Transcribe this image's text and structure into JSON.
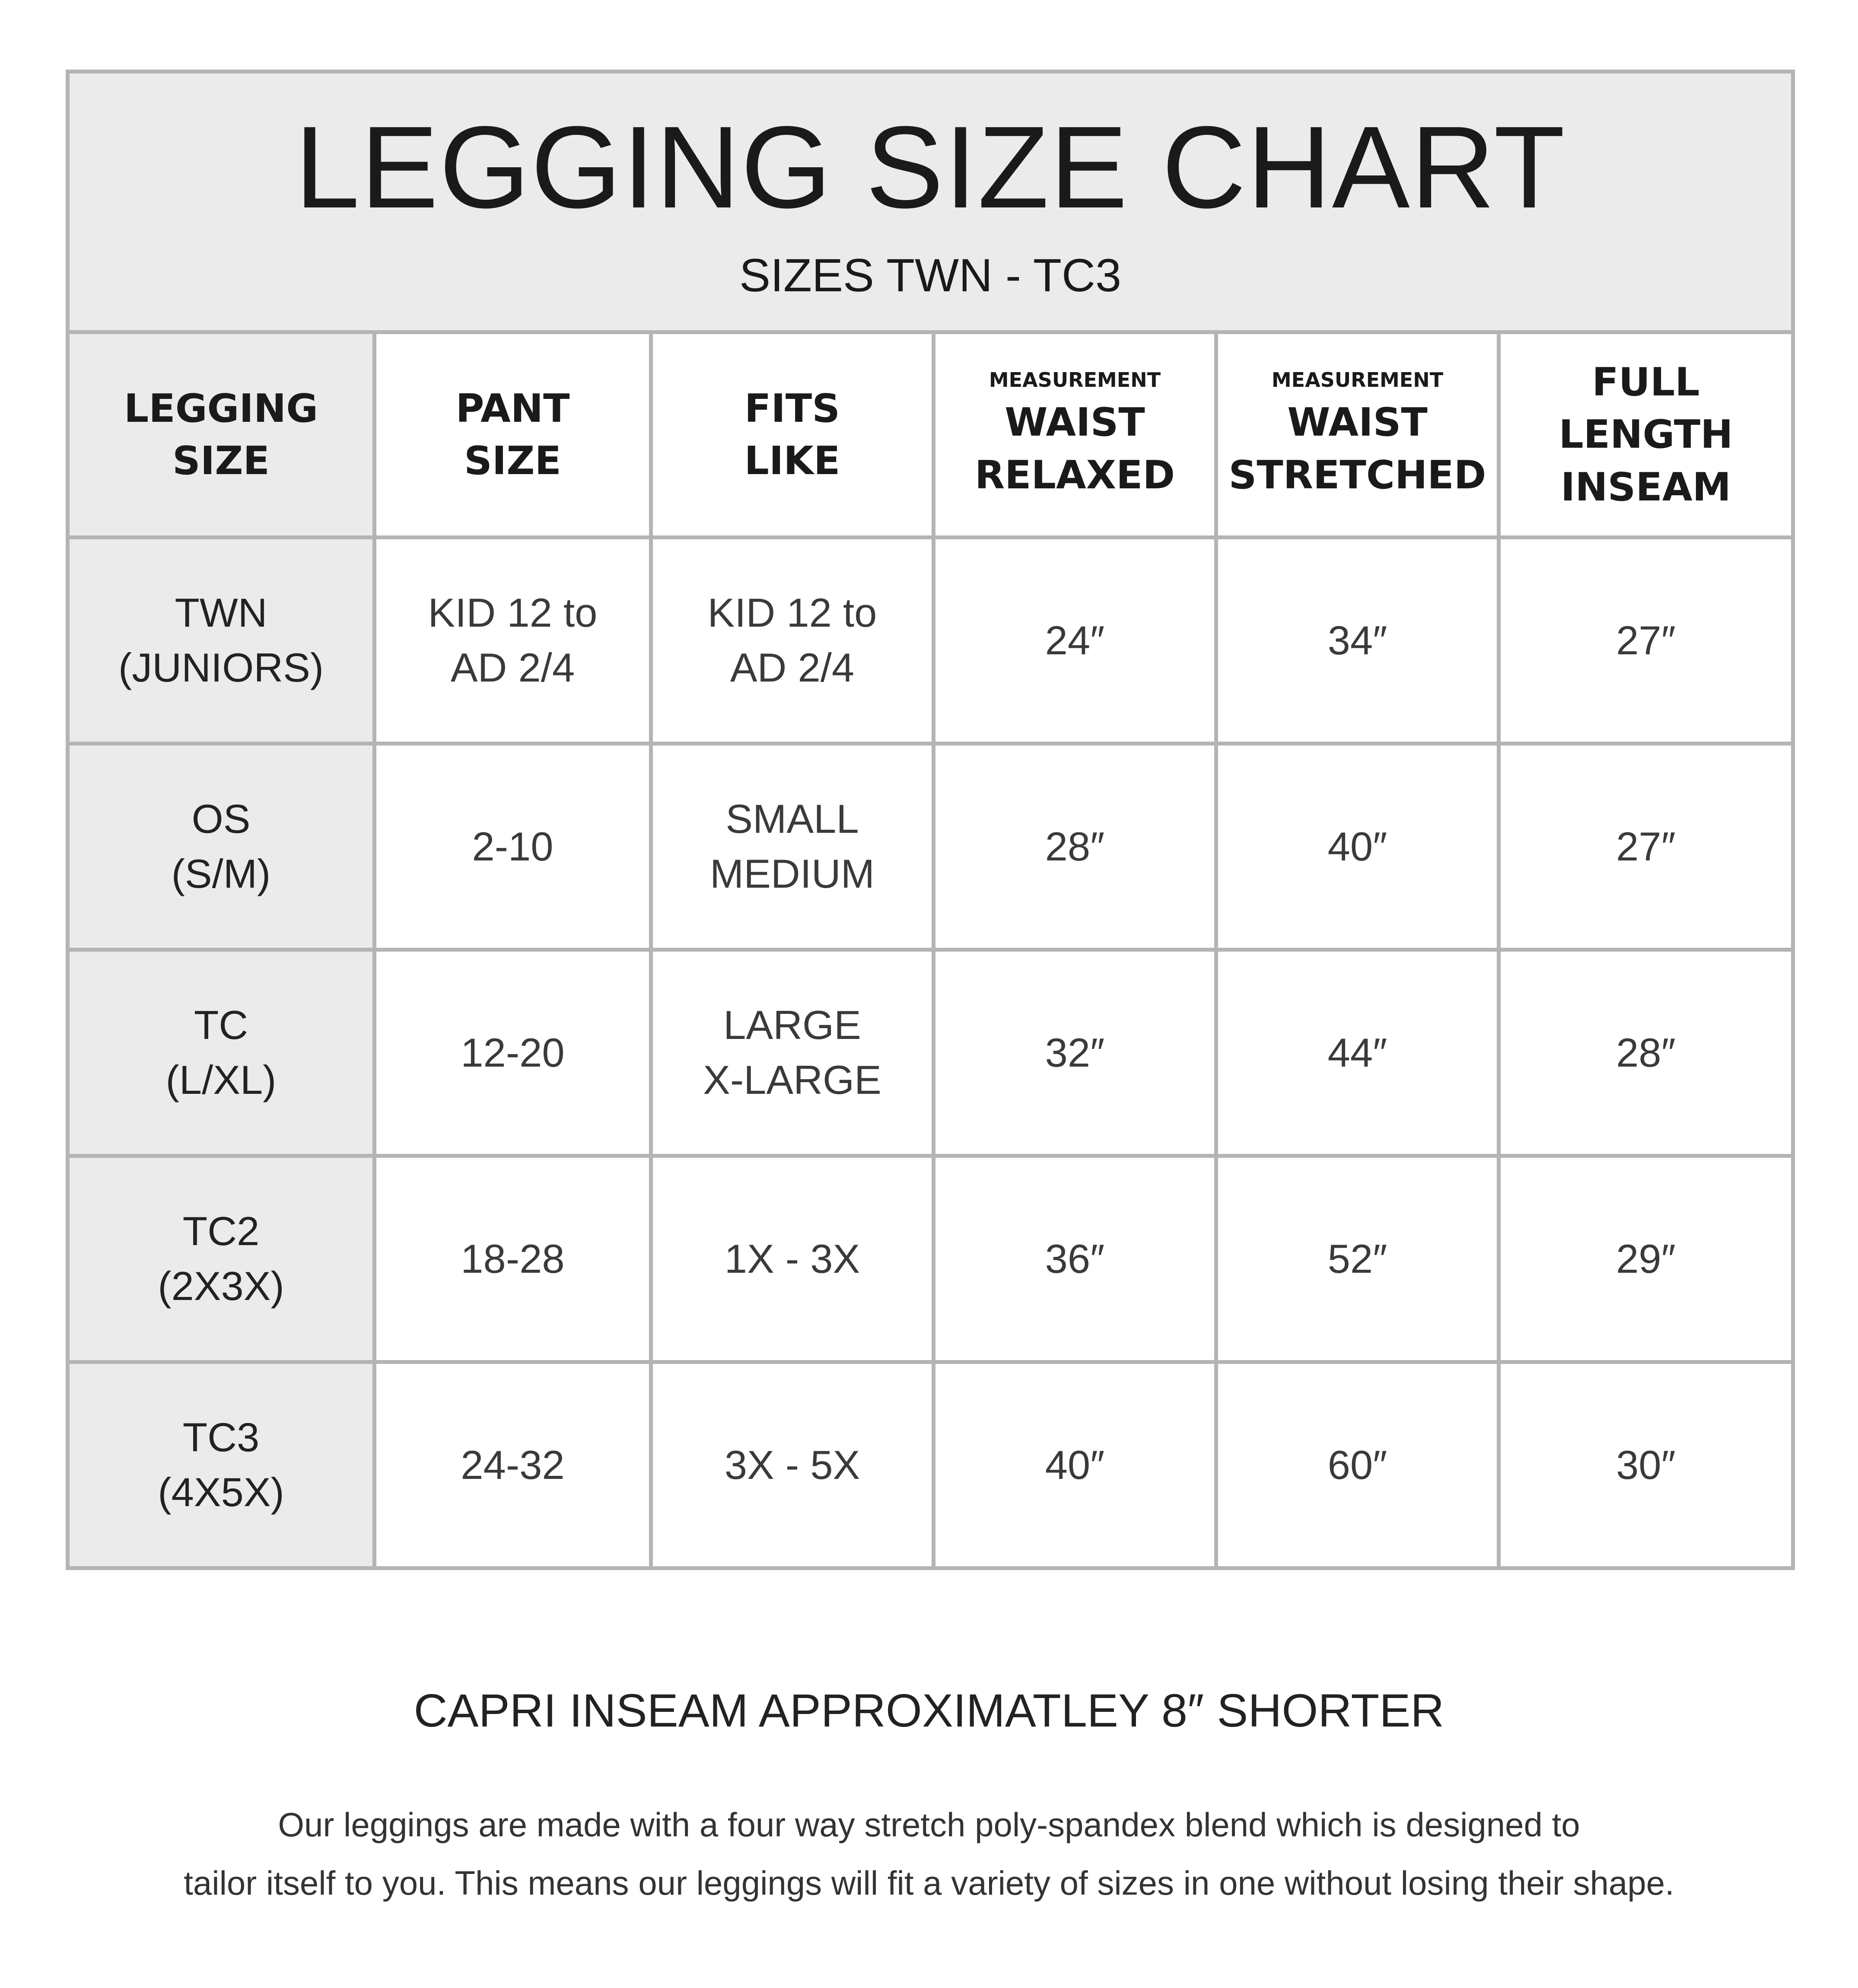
{
  "title": "LEGGING SIZE CHART",
  "subtitle": "SIZES TWN - TC3",
  "columns": [
    {
      "pre": "",
      "lines": [
        "LEGGING",
        "SIZE"
      ]
    },
    {
      "pre": "",
      "lines": [
        "PANT",
        "SIZE"
      ]
    },
    {
      "pre": "",
      "lines": [
        "FITS",
        "LIKE"
      ]
    },
    {
      "pre": "MEASUREMENT",
      "lines": [
        "WAIST",
        "RELAXED"
      ]
    },
    {
      "pre": "MEASUREMENT",
      "lines": [
        "WAIST",
        "STRETCHED"
      ]
    },
    {
      "pre": "",
      "lines": [
        "FULL LENGTH",
        "INSEAM"
      ]
    }
  ],
  "rows": [
    {
      "size": [
        "TWN",
        "(JUNIORS)"
      ],
      "pant": [
        "KID 12 to",
        "AD 2/4"
      ],
      "fits": [
        "KID 12 to",
        "AD 2/4"
      ],
      "relaxed": "24″",
      "stretched": "34″",
      "inseam": "27″"
    },
    {
      "size": [
        "OS",
        "(S/M)"
      ],
      "pant": [
        "2-10"
      ],
      "fits": [
        "SMALL",
        "MEDIUM"
      ],
      "relaxed": "28″",
      "stretched": "40″",
      "inseam": "27″"
    },
    {
      "size": [
        "TC",
        "(L/XL)"
      ],
      "pant": [
        "12-20"
      ],
      "fits": [
        "LARGE",
        "X-LARGE"
      ],
      "relaxed": "32″",
      "stretched": "44″",
      "inseam": "28″"
    },
    {
      "size": [
        "TC2",
        "(2X3X)"
      ],
      "pant": [
        "18-28"
      ],
      "fits": [
        "1X - 3X"
      ],
      "relaxed": "36″",
      "stretched": "52″",
      "inseam": "29″"
    },
    {
      "size": [
        "TC3",
        "(4X5X)"
      ],
      "pant": [
        "24-32"
      ],
      "fits": [
        "3X - 5X"
      ],
      "relaxed": "40″",
      "stretched": "60″",
      "inseam": "30″"
    }
  ],
  "capri_note": "CAPRI INSEAM APPROXIMATLEY 8″ SHORTER",
  "description": [
    "Our leggings are made with a four way stretch poly-spandex blend which is designed to",
    "tailor itself to you. This means our leggings will fit a variety of sizes in one without losing their shape."
  ],
  "colors": {
    "border": "#b4b4b4",
    "header_bg": "#ebebeb",
    "text": "#1a1a1a"
  }
}
